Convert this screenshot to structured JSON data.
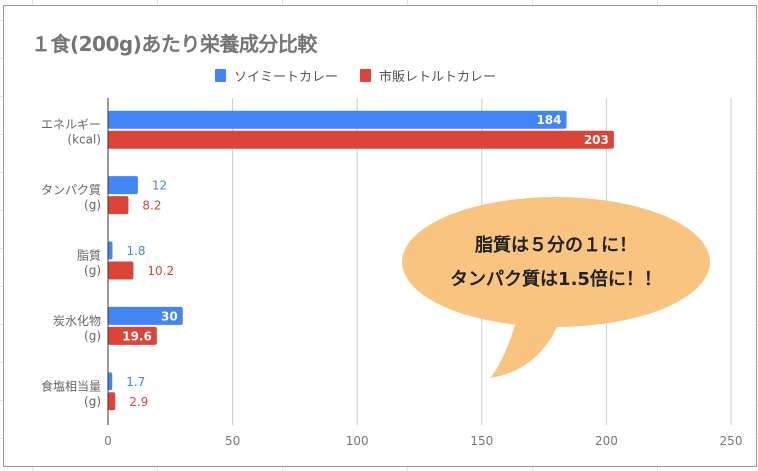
{
  "chart_data": {
    "type": "bar",
    "orientation": "horizontal",
    "title": "１食(200g)あたり栄養成分比較",
    "categories": [
      [
        "エネルギー",
        "(kcal)"
      ],
      [
        "タンパク質",
        "(g)"
      ],
      [
        "脂質",
        "(g)"
      ],
      [
        "炭水化物",
        "(g)"
      ],
      [
        "食塩相当量",
        "(g)"
      ]
    ],
    "series": [
      {
        "name": "ソイミートカレー",
        "color": "#4285f4",
        "values": [
          184,
          12,
          1.8,
          30,
          1.7
        ],
        "labels": [
          "184",
          "12",
          "1.8",
          "30",
          "1.7"
        ]
      },
      {
        "name": "市販レトルトカレー",
        "color": "#db4437",
        "values": [
          203,
          8.2,
          10.2,
          19.6,
          2.9
        ],
        "labels": [
          "203",
          "8.2",
          "10.2",
          "19.6",
          "2.9"
        ]
      }
    ],
    "xlim": [
      0,
      250
    ],
    "xticks": [
      "0",
      "50",
      "100",
      "150",
      "200",
      "250"
    ],
    "grid": true,
    "legend": "top-center"
  },
  "callout": {
    "line1": "脂質は５分の１に！",
    "line2": "タンパク質は1.5倍に！！",
    "color": "#f8c47f"
  }
}
